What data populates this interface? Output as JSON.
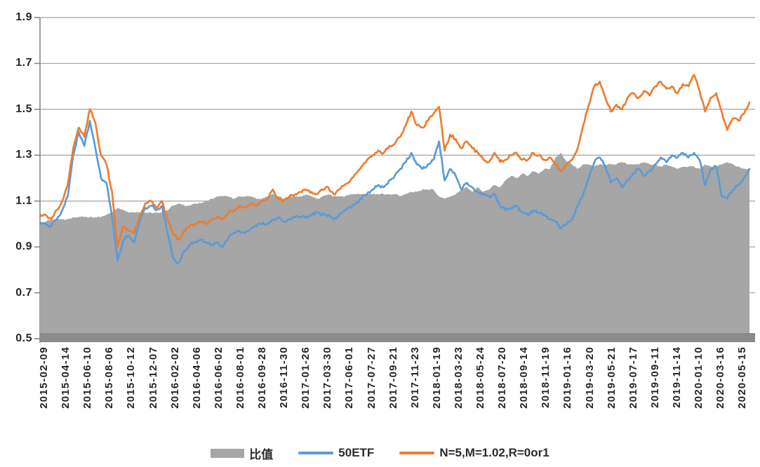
{
  "chart_data": {
    "type": "combo",
    "title": "",
    "xlabel": "",
    "ylabel": "",
    "ylim": [
      0.5,
      1.9
    ],
    "grid": "horizontal",
    "legend_position": "bottom-center",
    "y_ticks": [
      0.5,
      0.7,
      0.9,
      1.1,
      1.3,
      1.5,
      1.7,
      1.9
    ],
    "y_tick_labels": [
      "0.5",
      "0.7",
      "0.9",
      "1.1",
      "1.3",
      "1.5",
      "1.7",
      "1.9"
    ],
    "x_tick_labels": [
      "2015-02-09",
      "2015-04-14",
      "2015-06-10",
      "2015-08-06",
      "2015-10-12",
      "2015-12-07",
      "2016-02-02",
      "2016-04-06",
      "2016-06-02",
      "2016-08-01",
      "2016-09-28",
      "2016-11-30",
      "2017-01-26",
      "2017-03-30",
      "2017-06-01",
      "2017-07-27",
      "2017-09-21",
      "2017-11-23",
      "2018-01-19",
      "2018-03-23",
      "2018-05-24",
      "2018-07-20",
      "2018-09-14",
      "2018-11-19",
      "2019-01-16",
      "2019-03-20",
      "2019-05-21",
      "2019-07-17",
      "2019-09-11",
      "2019-11-14",
      "2020-01-10",
      "2020-03-16",
      "2020-05-15"
    ],
    "points_per_tick": 4,
    "series": [
      {
        "name": "比值",
        "type": "area",
        "color": "#a6a6a6",
        "values": [
          1.0,
          1.01,
          1.02,
          1.02,
          1.02,
          1.02,
          1.03,
          1.03,
          1.03,
          1.03,
          1.03,
          1.03,
          1.04,
          1.05,
          1.07,
          1.06,
          1.05,
          1.05,
          1.05,
          1.05,
          1.05,
          1.05,
          1.05,
          1.06,
          1.08,
          1.09,
          1.08,
          1.08,
          1.09,
          1.09,
          1.1,
          1.11,
          1.12,
          1.12,
          1.12,
          1.11,
          1.12,
          1.12,
          1.12,
          1.11,
          1.11,
          1.12,
          1.13,
          1.12,
          1.11,
          1.12,
          1.12,
          1.12,
          1.13,
          1.12,
          1.11,
          1.12,
          1.13,
          1.12,
          1.12,
          1.12,
          1.13,
          1.13,
          1.13,
          1.13,
          1.13,
          1.13,
          1.13,
          1.13,
          1.13,
          1.12,
          1.13,
          1.14,
          1.14,
          1.15,
          1.15,
          1.15,
          1.12,
          1.11,
          1.12,
          1.13,
          1.15,
          1.16,
          1.14,
          1.16,
          1.14,
          1.15,
          1.17,
          1.16,
          1.19,
          1.21,
          1.2,
          1.22,
          1.21,
          1.23,
          1.22,
          1.24,
          1.24,
          1.29,
          1.31,
          1.27,
          1.26,
          1.24,
          1.26,
          1.26,
          1.25,
          1.26,
          1.26,
          1.26,
          1.26,
          1.27,
          1.26,
          1.26,
          1.26,
          1.27,
          1.26,
          1.26,
          1.25,
          1.26,
          1.25,
          1.24,
          1.25,
          1.25,
          1.25,
          1.24,
          1.26,
          1.25,
          1.25,
          1.26,
          1.27,
          1.26,
          1.25,
          1.24,
          1.24
        ]
      },
      {
        "name": "50ETF",
        "type": "line",
        "color": "#5b9bd5",
        "values": [
          1.0,
          1.0,
          0.99,
          1.02,
          1.06,
          1.12,
          1.3,
          1.4,
          1.34,
          1.45,
          1.33,
          1.2,
          1.18,
          1.03,
          0.84,
          0.93,
          0.95,
          0.92,
          1.01,
          1.07,
          1.08,
          1.06,
          1.08,
          0.96,
          0.85,
          0.83,
          0.88,
          0.91,
          0.92,
          0.93,
          0.92,
          0.91,
          0.92,
          0.9,
          0.94,
          0.96,
          0.97,
          0.96,
          0.98,
          0.99,
          1.0,
          1.0,
          1.02,
          1.03,
          1.01,
          1.02,
          1.03,
          1.03,
          1.03,
          1.04,
          1.05,
          1.04,
          1.04,
          1.02,
          1.04,
          1.06,
          1.07,
          1.09,
          1.11,
          1.13,
          1.15,
          1.17,
          1.16,
          1.19,
          1.21,
          1.24,
          1.27,
          1.31,
          1.26,
          1.24,
          1.26,
          1.28,
          1.36,
          1.19,
          1.24,
          1.21,
          1.15,
          1.18,
          1.16,
          1.14,
          1.13,
          1.12,
          1.13,
          1.08,
          1.06,
          1.07,
          1.08,
          1.05,
          1.04,
          1.06,
          1.05,
          1.04,
          1.02,
          1.01,
          0.98,
          1.0,
          1.02,
          1.08,
          1.13,
          1.2,
          1.27,
          1.29,
          1.25,
          1.18,
          1.2,
          1.16,
          1.19,
          1.22,
          1.24,
          1.21,
          1.23,
          1.26,
          1.29,
          1.27,
          1.3,
          1.29,
          1.31,
          1.29,
          1.31,
          1.28,
          1.17,
          1.24,
          1.25,
          1.12,
          1.11,
          1.15,
          1.17,
          1.2,
          1.24
        ]
      },
      {
        "name": "N=5,M=1.02,R=0or1",
        "type": "line",
        "color": "#ed7d31",
        "values": [
          1.03,
          1.04,
          1.02,
          1.06,
          1.1,
          1.17,
          1.33,
          1.42,
          1.38,
          1.5,
          1.44,
          1.3,
          1.26,
          1.14,
          0.9,
          0.99,
          0.97,
          0.96,
          1.04,
          1.09,
          1.1,
          1.07,
          1.1,
          1.02,
          0.96,
          0.93,
          0.97,
          0.99,
          1.0,
          1.01,
          1.0,
          1.02,
          1.03,
          1.02,
          1.05,
          1.06,
          1.08,
          1.07,
          1.09,
          1.08,
          1.1,
          1.11,
          1.15,
          1.11,
          1.1,
          1.12,
          1.13,
          1.14,
          1.15,
          1.14,
          1.13,
          1.15,
          1.16,
          1.13,
          1.15,
          1.17,
          1.19,
          1.22,
          1.25,
          1.28,
          1.3,
          1.32,
          1.31,
          1.34,
          1.35,
          1.38,
          1.43,
          1.49,
          1.43,
          1.42,
          1.45,
          1.48,
          1.51,
          1.32,
          1.39,
          1.37,
          1.33,
          1.36,
          1.33,
          1.31,
          1.28,
          1.27,
          1.31,
          1.27,
          1.28,
          1.3,
          1.31,
          1.28,
          1.28,
          1.31,
          1.3,
          1.28,
          1.29,
          1.26,
          1.23,
          1.26,
          1.28,
          1.33,
          1.43,
          1.52,
          1.6,
          1.62,
          1.55,
          1.49,
          1.52,
          1.5,
          1.55,
          1.57,
          1.55,
          1.58,
          1.56,
          1.6,
          1.62,
          1.59,
          1.6,
          1.57,
          1.61,
          1.6,
          1.65,
          1.58,
          1.49,
          1.55,
          1.57,
          1.49,
          1.41,
          1.46,
          1.45,
          1.48,
          1.53
        ]
      }
    ],
    "style": {
      "gridline_color": "#a3a3a3",
      "axis_line_color": "#808080",
      "axis_band_color": "#8b8b8b",
      "tick_label_color": "#262626",
      "background": "#ffffff"
    }
  }
}
